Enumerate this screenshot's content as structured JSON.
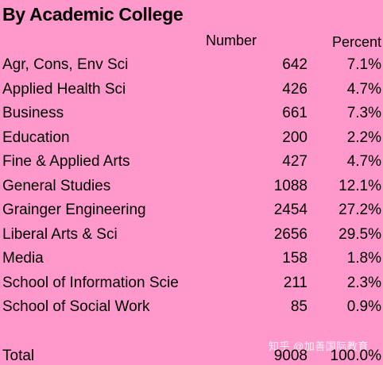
{
  "title": "By Academic College",
  "headers": {
    "number": "Number",
    "percent": "Percent"
  },
  "rows": [
    {
      "name": "Agr, Cons, Env Sci",
      "number": "642",
      "percent": "7.1%"
    },
    {
      "name": "Applied Health Sci",
      "number": "426",
      "percent": "4.7%"
    },
    {
      "name": "Business",
      "number": "661",
      "percent": "7.3%"
    },
    {
      "name": "Education",
      "number": "200",
      "percent": "2.2%"
    },
    {
      "name": "Fine & Applied Arts",
      "number": "427",
      "percent": "4.7%"
    },
    {
      "name": "General Studies",
      "number": "1088",
      "percent": "12.1%"
    },
    {
      "name": "Grainger Engineering",
      "number": "2454",
      "percent": "27.2%"
    },
    {
      "name": "Liberal Arts & Sci",
      "number": "2656",
      "percent": "29.5%"
    },
    {
      "name": "Media",
      "number": "158",
      "percent": "1.8%"
    },
    {
      "name": "School of Information Scie",
      "number": "211",
      "percent": "2.3%"
    },
    {
      "name": "School of Social Work",
      "number": "85",
      "percent": "0.9%"
    }
  ],
  "total": {
    "name": "Total",
    "number": "9008",
    "percent": "100.0%"
  },
  "watermark": "知乎 @加善国际教育",
  "colors": {
    "background": "#ff99cc",
    "text": "#000000"
  }
}
